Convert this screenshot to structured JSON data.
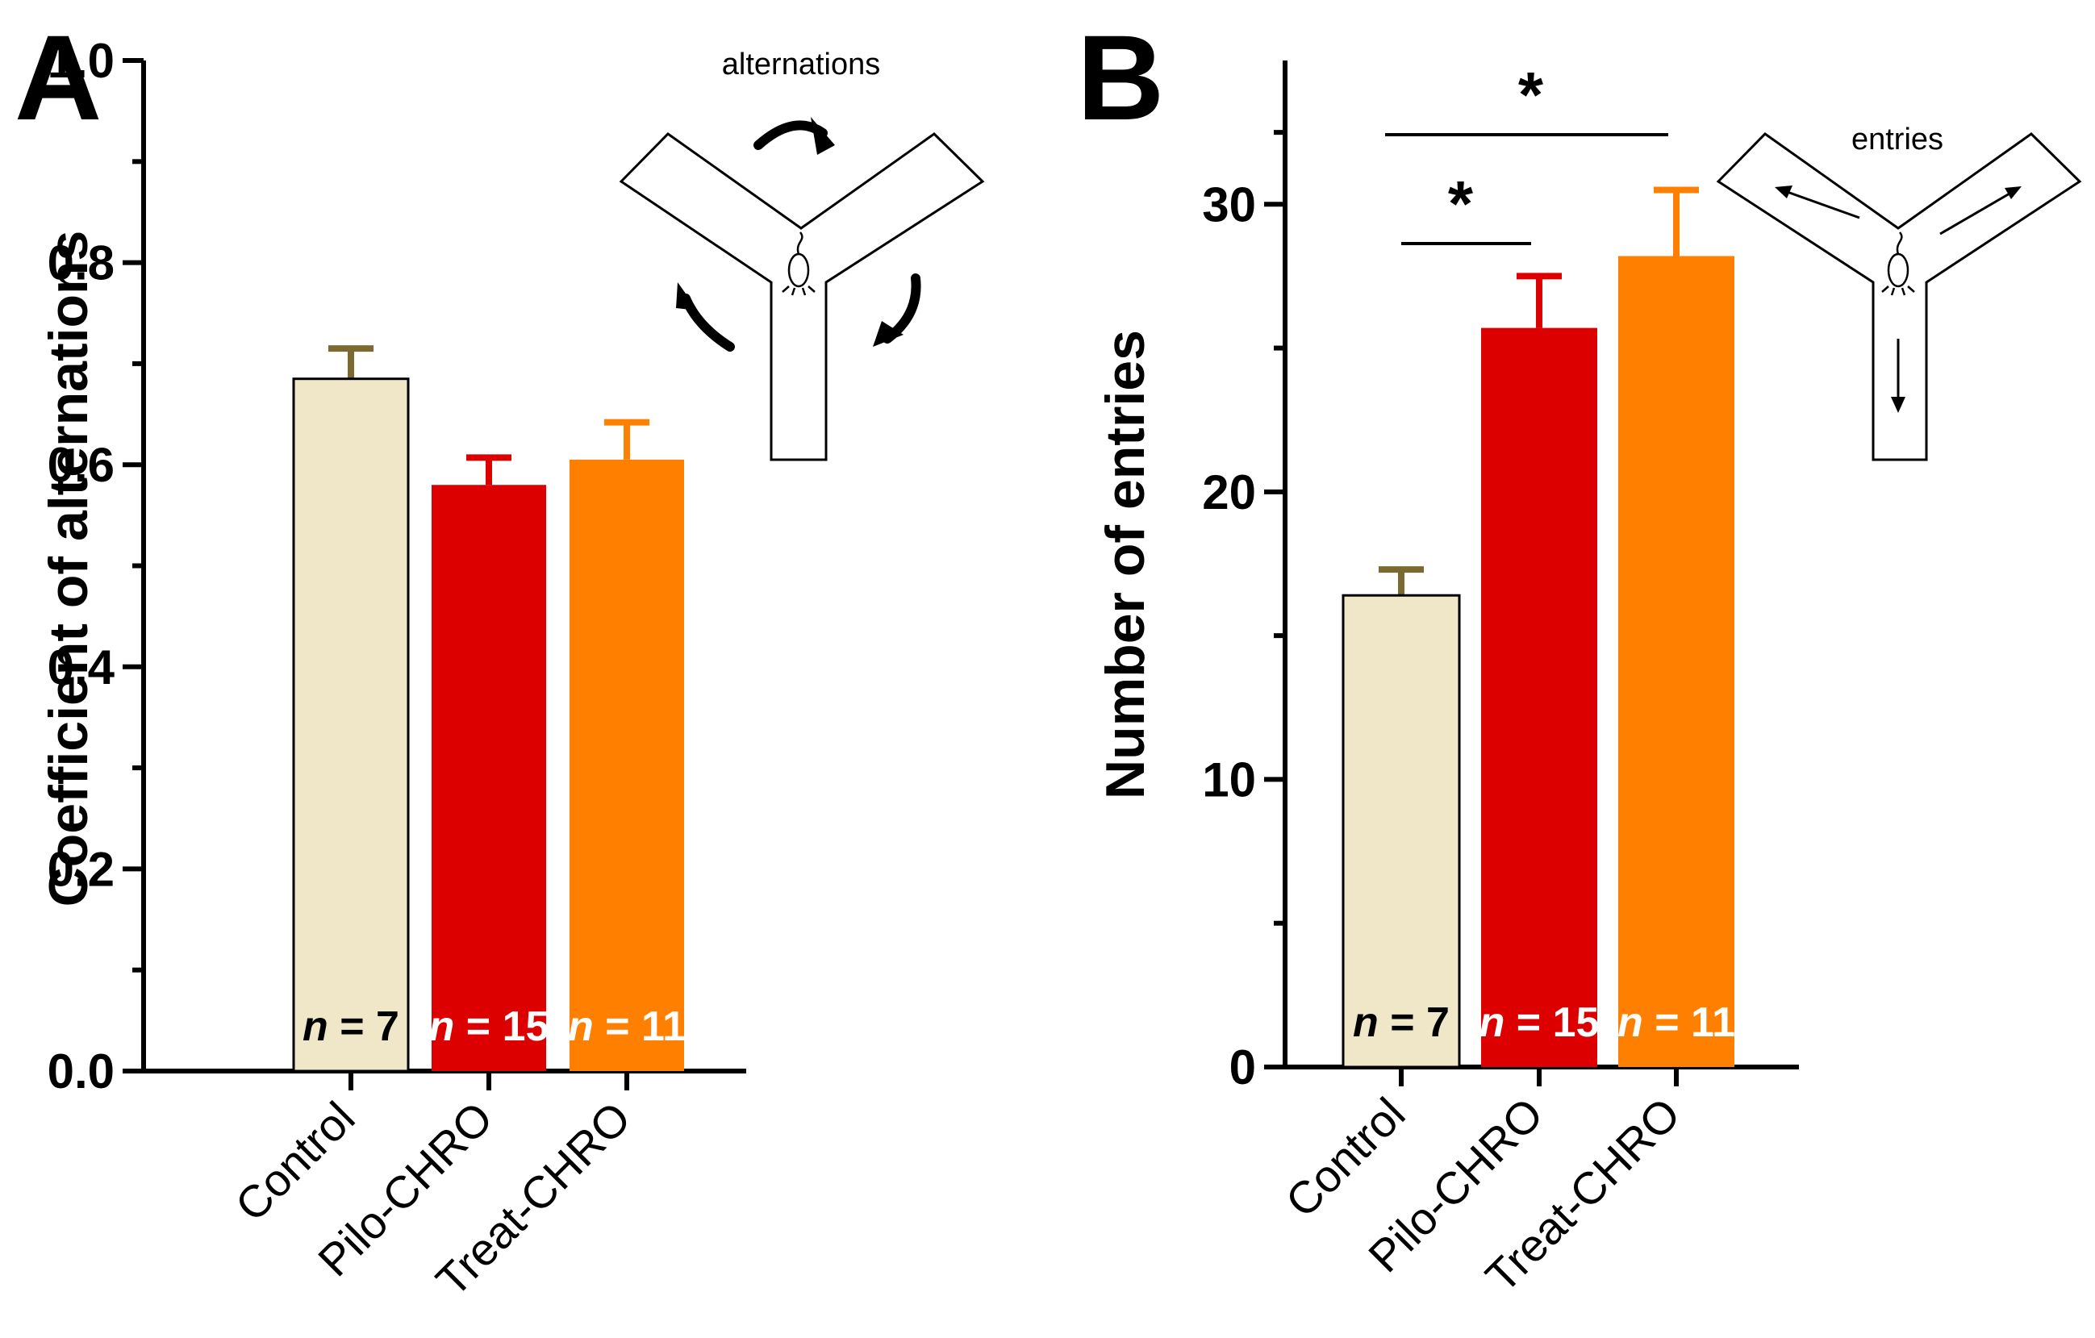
{
  "chart_data": [
    {
      "panel": "A",
      "type": "bar",
      "title": "",
      "xlabel": "",
      "ylabel": "Coefficient of alternations",
      "ylim": [
        0,
        1.0
      ],
      "yticks": [
        "0.0",
        "0.2",
        "0.4",
        "0.6",
        "0.8",
        "1.0"
      ],
      "categories": [
        "Control",
        "Pilo-CHRO",
        "Treat-CHRO"
      ],
      "values": [
        0.685,
        0.58,
        0.605
      ],
      "errors": [
        0.03,
        0.027,
        0.037
      ],
      "n_labels": [
        "= 7",
        "= 15",
        "= 11"
      ],
      "n_italic": "n",
      "colors": [
        "#F0E6C8",
        "#DD0000",
        "#FF8000"
      ],
      "error_colors": [
        "#7A6A30",
        "#DD0000",
        "#FF8000"
      ],
      "n_colors": [
        "#000000",
        "#FFFFFF",
        "#FFFFFF"
      ],
      "inset_label": "alternations",
      "significance": []
    },
    {
      "panel": "B",
      "type": "bar",
      "title": "",
      "xlabel": "",
      "ylabel": "Number of entries",
      "ylim": [
        0,
        35
      ],
      "yticks": [
        "0",
        "10",
        "20",
        "30"
      ],
      "categories": [
        "Control",
        "Pilo-CHRO",
        "Treat-CHRO"
      ],
      "values": [
        16.4,
        25.7,
        28.2
      ],
      "errors": [
        0.9,
        1.8,
        2.3
      ],
      "n_labels": [
        "= 7",
        "= 15",
        "= 11"
      ],
      "n_italic": "n",
      "colors": [
        "#F0E6C8",
        "#DD0000",
        "#FF8000"
      ],
      "error_colors": [
        "#7A6A30",
        "#DD0000",
        "#FF8000"
      ],
      "n_colors": [
        "#000000",
        "#FFFFFF",
        "#FFFFFF"
      ],
      "inset_label": "entries",
      "significance": [
        {
          "from": "Control",
          "to": "Pilo-CHRO",
          "label": "*"
        },
        {
          "from": "Control",
          "to": "Treat-CHRO",
          "label": "*"
        }
      ]
    }
  ]
}
